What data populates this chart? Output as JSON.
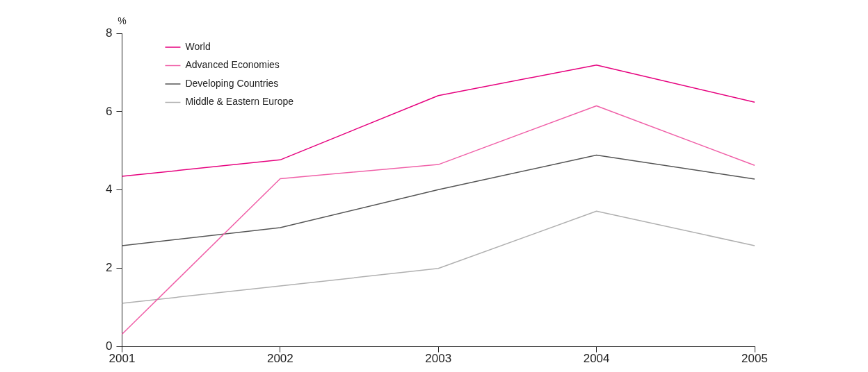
{
  "chart_data": {
    "type": "line",
    "ylabel": "%",
    "categories": [
      "2001",
      "2002",
      "2003",
      "2004",
      "2005"
    ],
    "series": [
      {
        "name": "World",
        "color": "#e6007e",
        "values": [
          4.35,
          4.77,
          6.41,
          7.19,
          6.24
        ]
      },
      {
        "name": "Advanced Economies",
        "color": "#f060a8",
        "values": [
          0.32,
          4.29,
          4.65,
          6.15,
          4.63
        ]
      },
      {
        "name": "Developing Countries",
        "color": "#555555",
        "values": [
          2.58,
          3.04,
          4.01,
          4.89,
          4.28
        ]
      },
      {
        "name": "Middle & Eastern Europe",
        "color": "#b0b0b0",
        "values": [
          1.11,
          1.55,
          2.0,
          3.46,
          2.58
        ]
      }
    ],
    "ylim": [
      0,
      8
    ],
    "yticks": [
      0,
      2,
      4,
      6,
      8
    ],
    "grid": false,
    "legend": "top left",
    "marker": "none",
    "line_style": "solid"
  }
}
